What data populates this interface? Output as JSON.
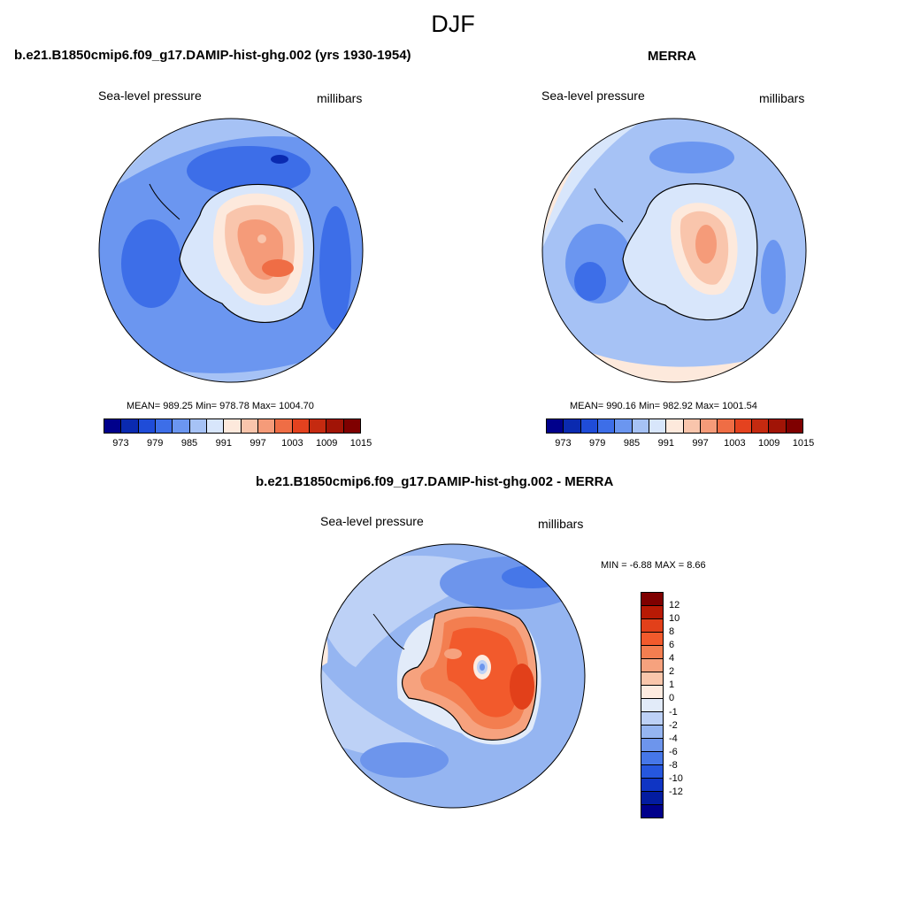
{
  "title": "DJF",
  "units_label": "millibars",
  "variable_label": "Sea-level pressure",
  "panels": {
    "model": {
      "title": "b.e21.B1850cmip6.f09_g17.DAMIP-hist-ghg.002 (yrs 1930-1954)",
      "variable": "Sea-level pressure",
      "units": "millibars",
      "stats": "MEAN= 989.25  Min= 978.78  Max= 1004.70"
    },
    "obs": {
      "title": "MERRA",
      "variable": "Sea-level pressure",
      "units": "millibars",
      "stats": "MEAN= 990.16  Min= 982.92  Max= 1001.54"
    },
    "diff": {
      "title": "b.e21.B1850cmip6.f09_g17.DAMIP-hist-ghg.002 - MERRA",
      "variable": "Sea-level pressure",
      "units": "millibars",
      "stats": "MIN =  -6.88 MAX =   8.66"
    }
  },
  "abs_colorbar": {
    "colors": [
      "#00008b",
      "#0a2ab0",
      "#1f4cd8",
      "#3d6ee8",
      "#6b96f0",
      "#a6c2f5",
      "#d8e6fb",
      "#fde9dc",
      "#f9c5ac",
      "#f59b79",
      "#ef6d45",
      "#e4421f",
      "#c52a10",
      "#a11406",
      "#7f0000"
    ],
    "tick_labels": [
      "973",
      "979",
      "985",
      "991",
      "997",
      "1003",
      "1009",
      "1015"
    ]
  },
  "diff_colorbar": {
    "colors_top_to_bottom": [
      "#7f0000",
      "#b81a05",
      "#e2401a",
      "#f25a2c",
      "#f37e50",
      "#f6a27e",
      "#f9c6ab",
      "#fdebe0",
      "#e2ebf9",
      "#bdd1f6",
      "#95b5f1",
      "#6d95ec",
      "#4677e8",
      "#2657de",
      "#0f35c4",
      "#031ca0",
      "#00008b"
    ],
    "tick_labels": [
      "12",
      "10",
      "8",
      "6",
      "4",
      "2",
      "1",
      "0",
      "-1",
      "-2",
      "-4",
      "-6",
      "-8",
      "-10",
      "-12"
    ]
  }
}
